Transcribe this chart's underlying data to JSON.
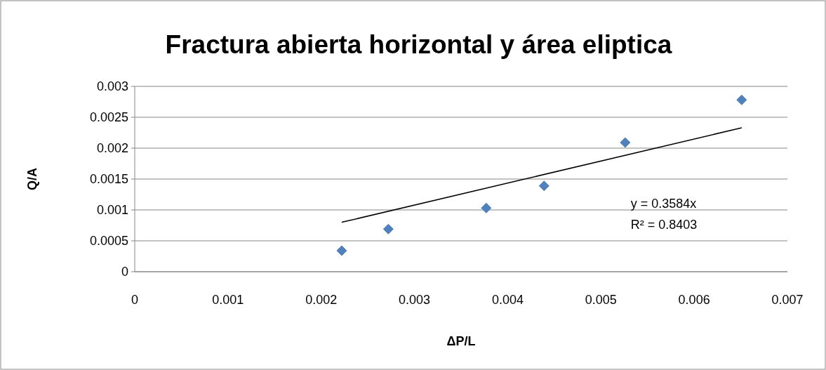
{
  "chart_data": {
    "type": "scatter",
    "title": "Fractura abierta horizontal y área eliptica",
    "xlabel": "ΔP/L",
    "ylabel": "Q/A",
    "xlim": [
      0,
      0.007
    ],
    "xticks": [
      0,
      0.001,
      0.002,
      0.003,
      0.004,
      0.005,
      0.006,
      0.007
    ],
    "ylim": [
      0,
      0.003
    ],
    "yticks": [
      0,
      0.0005,
      0.001,
      0.0015,
      0.002,
      0.0025,
      0.003
    ],
    "grid": "y",
    "series": [
      {
        "color": "#4f81bd",
        "marker": "diamond",
        "x": [
          0.00222,
          0.00272,
          0.00377,
          0.00439,
          0.00526,
          0.00651
        ],
        "values": [
          0.00034,
          0.00069,
          0.00103,
          0.00139,
          0.00209,
          0.00278
        ]
      },
      {
        "type": "line",
        "color": "#000000",
        "x": [
          0.00222,
          0.00651
        ],
        "values": [
          0.0008,
          0.00233
        ]
      }
    ],
    "annotations": [
      "y = 0.3584x",
      "R² = 0.8403"
    ]
  }
}
